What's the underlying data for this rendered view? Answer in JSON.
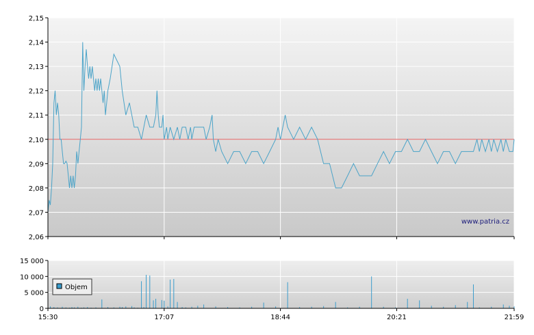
{
  "watermark": "www.patria.cz",
  "colors": {
    "price_line": "#4aa3c8",
    "reference_line": "#e06060",
    "volume": "#3a9ccc",
    "legend_box_fill": "#3a9ccc"
  },
  "chart_data": [
    {
      "type": "line",
      "name": "price",
      "ylim": [
        2.06,
        2.15
      ],
      "yticks": [
        "2,06",
        "2,07",
        "2,08",
        "2,09",
        "2,10",
        "2,11",
        "2,12",
        "2,13",
        "2,14",
        "2,15"
      ],
      "ytick_values": [
        2.06,
        2.07,
        2.08,
        2.09,
        2.1,
        2.11,
        2.12,
        2.13,
        2.14,
        2.15
      ],
      "xlim": [
        "15:30",
        "21:59"
      ],
      "xtick_minutes": [
        0,
        97,
        194,
        291,
        389
      ],
      "reference_line": 2.1,
      "grid": true,
      "series": [
        {
          "x": [
            0,
            1,
            2,
            3,
            4,
            5,
            6,
            7,
            8,
            9,
            10,
            11,
            12,
            13,
            14,
            15,
            16,
            17,
            18,
            19,
            20,
            21,
            22,
            23,
            24,
            25,
            26,
            27,
            28,
            29,
            30,
            31,
            32,
            33,
            34,
            35,
            36,
            37,
            38,
            39,
            40,
            41,
            42,
            43,
            44,
            45,
            46,
            47,
            48,
            49,
            50,
            52,
            55,
            58,
            60,
            62,
            65,
            68,
            70,
            72,
            75,
            78,
            80,
            82,
            85,
            88,
            90,
            91,
            92,
            93,
            95,
            96,
            97,
            99,
            100,
            102,
            105,
            108,
            110,
            112,
            115,
            117,
            119,
            120,
            122,
            125,
            128,
            130,
            132,
            135,
            137,
            138,
            140,
            142,
            145,
            150,
            155,
            160,
            165,
            170,
            175,
            180,
            185,
            190,
            192,
            194,
            196,
            198,
            200,
            205,
            210,
            215,
            220,
            225,
            230,
            235,
            240,
            245,
            250,
            255,
            260,
            265,
            270,
            275,
            280,
            285,
            290,
            295,
            300,
            305,
            310,
            315,
            320,
            325,
            330,
            335,
            340,
            345,
            350,
            355,
            358,
            360,
            362,
            365,
            368,
            370,
            372,
            375,
            378,
            380,
            382,
            385,
            388,
            389
          ],
          "y": [
            2.07,
            2.075,
            2.073,
            2.08,
            2.09,
            2.115,
            2.12,
            2.11,
            2.115,
            2.11,
            2.1,
            2.1,
            2.095,
            2.09,
            2.09,
            2.091,
            2.09,
            2.085,
            2.08,
            2.085,
            2.08,
            2.085,
            2.08,
            2.085,
            2.095,
            2.09,
            2.095,
            2.1,
            2.105,
            2.14,
            2.12,
            2.13,
            2.137,
            2.13,
            2.125,
            2.13,
            2.125,
            2.13,
            2.125,
            2.12,
            2.125,
            2.12,
            2.125,
            2.12,
            2.125,
            2.12,
            2.115,
            2.12,
            2.11,
            2.115,
            2.12,
            2.125,
            2.135,
            2.132,
            2.13,
            2.12,
            2.11,
            2.115,
            2.11,
            2.105,
            2.105,
            2.1,
            2.105,
            2.11,
            2.105,
            2.105,
            2.11,
            2.12,
            2.11,
            2.105,
            2.105,
            2.11,
            2.1,
            2.105,
            2.1,
            2.105,
            2.1,
            2.105,
            2.1,
            2.105,
            2.105,
            2.1,
            2.105,
            2.1,
            2.105,
            2.105,
            2.105,
            2.105,
            2.1,
            2.105,
            2.11,
            2.1,
            2.095,
            2.1,
            2.095,
            2.09,
            2.095,
            2.095,
            2.09,
            2.095,
            2.095,
            2.09,
            2.095,
            2.1,
            2.105,
            2.1,
            2.105,
            2.11,
            2.105,
            2.1,
            2.105,
            2.1,
            2.105,
            2.1,
            2.09,
            2.09,
            2.08,
            2.08,
            2.085,
            2.09,
            2.085,
            2.085,
            2.085,
            2.09,
            2.095,
            2.09,
            2.095,
            2.095,
            2.1,
            2.095,
            2.095,
            2.1,
            2.095,
            2.09,
            2.095,
            2.095,
            2.09,
            2.095,
            2.095,
            2.095,
            2.1,
            2.095,
            2.1,
            2.095,
            2.1,
            2.095,
            2.1,
            2.095,
            2.1,
            2.095,
            2.1,
            2.095,
            2.095,
            2.1
          ]
        }
      ]
    },
    {
      "type": "bar",
      "name": "volume",
      "ylim": [
        0,
        15000
      ],
      "yticks": [
        "0",
        "5 000",
        "10 000",
        "15 000"
      ],
      "ytick_values": [
        0,
        5000,
        10000,
        15000
      ],
      "xticks": [
        "15:30",
        "17:07",
        "18:44",
        "20:21",
        "21:59"
      ],
      "xtick_minutes": [
        0,
        97,
        194,
        291,
        389
      ],
      "legend": "Objem",
      "legend_position": "left",
      "series": [
        {
          "x": [
            2,
            5,
            8,
            12,
            15,
            18,
            20,
            22,
            25,
            28,
            30,
            33,
            36,
            40,
            45,
            50,
            55,
            60,
            62,
            65,
            70,
            72,
            75,
            78,
            80,
            82,
            85,
            88,
            90,
            95,
            97,
            100,
            102,
            105,
            108,
            112,
            115,
            120,
            125,
            130,
            140,
            150,
            160,
            170,
            180,
            190,
            200,
            210,
            220,
            230,
            240,
            250,
            260,
            270,
            280,
            290,
            300,
            310,
            320,
            330,
            340,
            350,
            355,
            360,
            370,
            380,
            385,
            389
          ],
          "values": [
            600,
            400,
            300,
            500,
            300,
            200,
            400,
            300,
            500,
            200,
            300,
            400,
            200,
            300,
            2800,
            400,
            300,
            500,
            400,
            600,
            700,
            300,
            200,
            8500,
            400,
            10500,
            10300,
            2500,
            3000,
            2600,
            2400,
            600,
            9000,
            9200,
            2000,
            400,
            300,
            500,
            800,
            1200,
            600,
            400,
            300,
            500,
            1800,
            600,
            8200,
            400,
            500,
            700,
            2000,
            300,
            500,
            10000,
            500,
            300,
            3000,
            2500,
            800,
            500,
            1000,
            2000,
            7500,
            300,
            500,
            1200,
            800,
            600
          ]
        }
      ]
    }
  ]
}
